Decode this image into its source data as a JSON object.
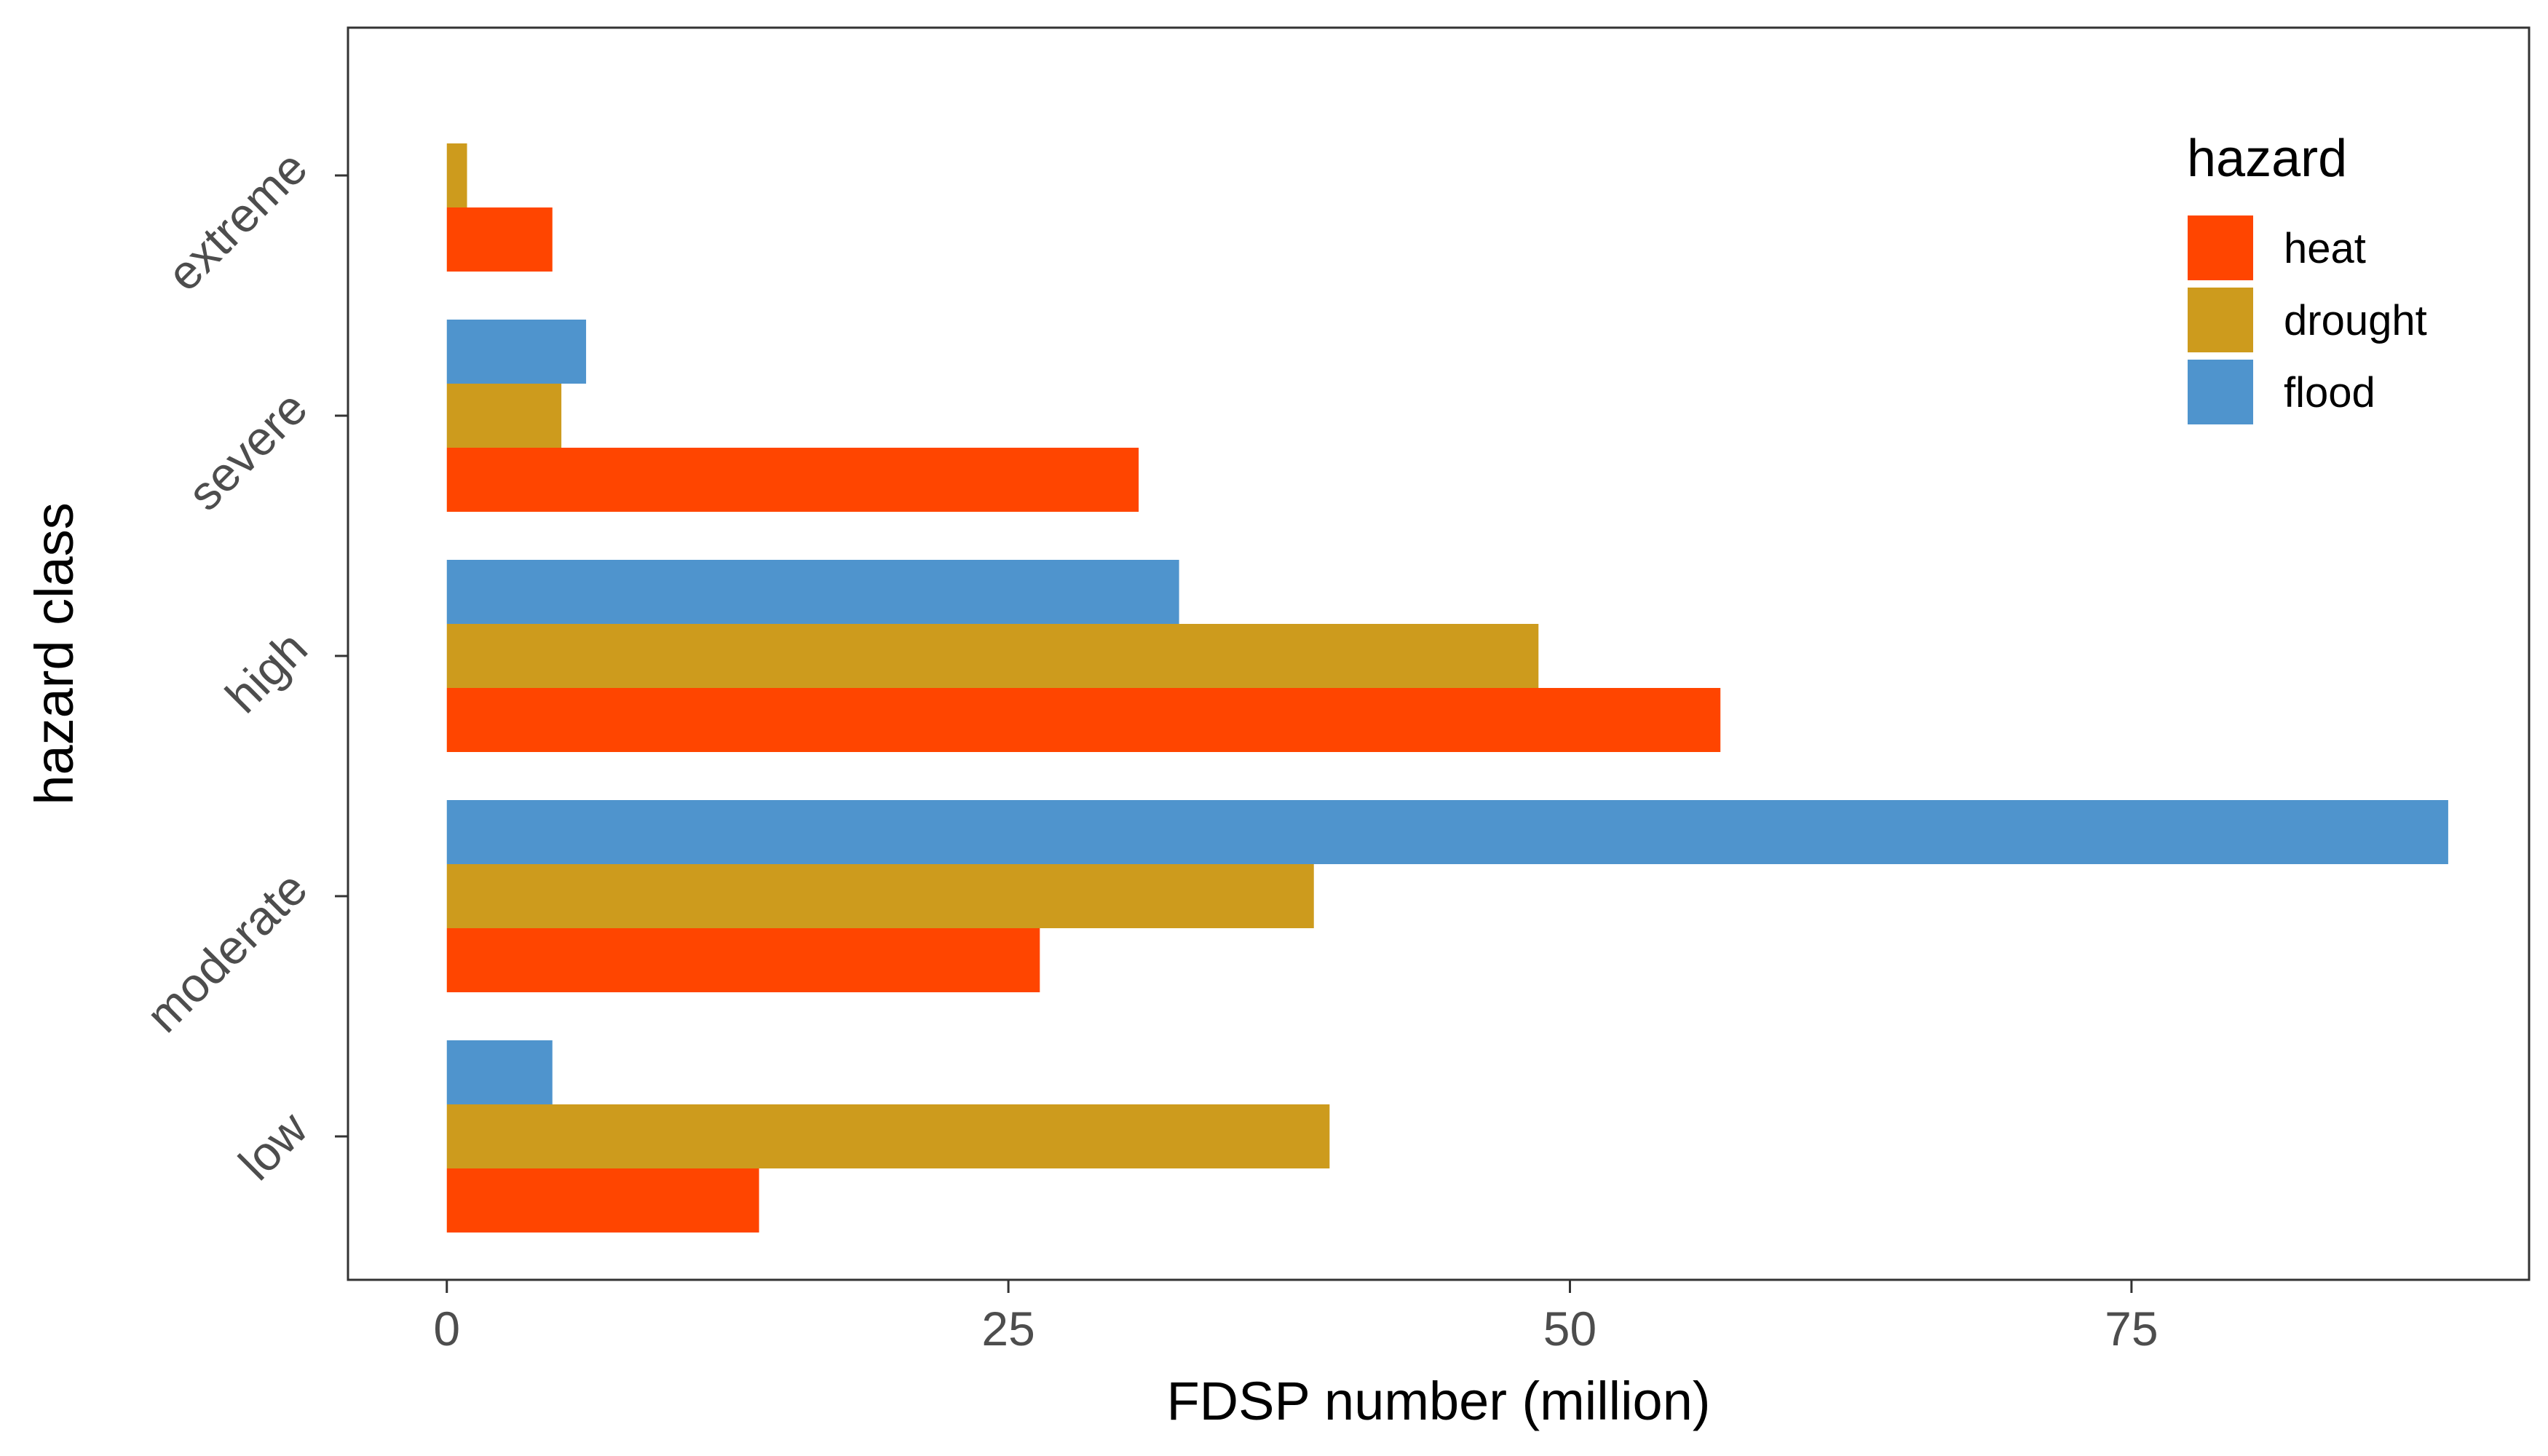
{
  "chart_data": {
    "type": "bar",
    "orientation": "horizontal",
    "title": "",
    "xlabel": "FDSP number (million)",
    "ylabel": "hazard class",
    "categories": [
      "low",
      "moderate",
      "high",
      "severe",
      "extreme"
    ],
    "x_ticks": [
      0,
      25,
      50,
      75
    ],
    "xlim": [
      -4.4,
      92.7
    ],
    "grid": false,
    "legend": {
      "title": "hazard",
      "placement": "top-right",
      "entries": [
        "heat",
        "drought",
        "flood"
      ]
    },
    "series": [
      {
        "name": "heat",
        "color": "#FF4500",
        "values": [
          13.9,
          26.4,
          56.7,
          30.8,
          4.7
        ]
      },
      {
        "name": "drought",
        "color": "#CD9B1D",
        "values": [
          39.3,
          38.6,
          48.6,
          5.1,
          0.9
        ]
      },
      {
        "name": "flood",
        "color": "#4F94CD",
        "values": [
          4.7,
          89.1,
          32.6,
          6.2,
          null
        ]
      }
    ]
  }
}
